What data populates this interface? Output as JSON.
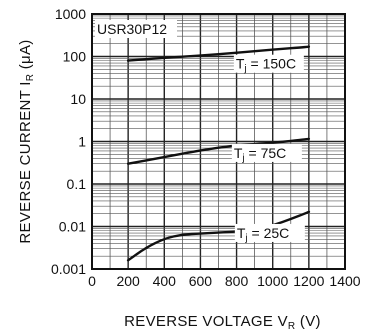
{
  "chart_data": {
    "type": "line",
    "title": "USR30P12",
    "xlabel": "REVERSE VOLTAGE  V",
    "xlabel_sub": "R",
    "xlabel_unit": " (V)",
    "ylabel": "REVERSE CURRENT  I",
    "ylabel_sub": "R",
    "ylabel_unit": " (μA)",
    "x_scale": "linear",
    "y_scale": "log",
    "xlim": [
      0,
      1400
    ],
    "ylim": [
      0.001,
      1000
    ],
    "x_ticks": [
      0,
      200,
      400,
      600,
      800,
      1000,
      1200,
      1400
    ],
    "x_tick_labels": [
      "0",
      "200",
      "400",
      "600",
      "800",
      "1000",
      "1200",
      "1400"
    ],
    "y_ticks": [
      0.001,
      0.01,
      0.1,
      1,
      10,
      100,
      1000
    ],
    "y_tick_labels": [
      "0.001",
      "0.01",
      "0.1",
      "1",
      "10",
      "100",
      "1000"
    ],
    "grid": true,
    "series": [
      {
        "name": "Tj = 150C",
        "label_main": "T",
        "label_sub": "j",
        "label_rest": " = 150C",
        "color": "#111111",
        "x": [
          200,
          400,
          600,
          800,
          1000,
          1200
        ],
        "y": [
          80,
          93,
          105,
          122,
          145,
          170
        ]
      },
      {
        "name": "Tj = 75C",
        "label_main": "T",
        "label_sub": "j",
        "label_rest": " = 75C",
        "color": "#111111",
        "x": [
          200,
          400,
          600,
          800,
          1000,
          1200
        ],
        "y": [
          0.3,
          0.43,
          0.62,
          0.82,
          0.92,
          1.15
        ]
      },
      {
        "name": "Tj = 25C",
        "label_main": "T",
        "label_sub": "j",
        "label_rest": " = 25C",
        "color": "#111111",
        "x": [
          200,
          300,
          400,
          500,
          600,
          700,
          800,
          900,
          1000,
          1100,
          1200
        ],
        "y": [
          0.0016,
          0.0032,
          0.0052,
          0.0065,
          0.0068,
          0.0072,
          0.0076,
          0.0085,
          0.0105,
          0.015,
          0.022
        ]
      }
    ]
  }
}
